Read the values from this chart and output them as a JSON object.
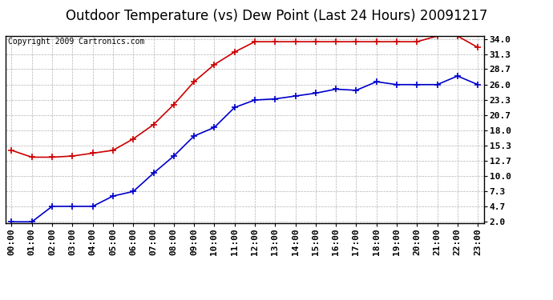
{
  "title": "Outdoor Temperature (vs) Dew Point (Last 24 Hours) 20091217",
  "copyright": "Copyright 2009 Cartronics.com",
  "hours": [
    "00:00",
    "01:00",
    "02:00",
    "03:00",
    "04:00",
    "05:00",
    "06:00",
    "07:00",
    "08:00",
    "09:00",
    "10:00",
    "11:00",
    "12:00",
    "13:00",
    "14:00",
    "15:00",
    "16:00",
    "17:00",
    "18:00",
    "19:00",
    "20:00",
    "21:00",
    "22:00",
    "23:00"
  ],
  "temp": [
    14.5,
    13.3,
    13.3,
    13.5,
    14.0,
    14.5,
    16.5,
    19.0,
    22.5,
    26.5,
    29.5,
    31.7,
    33.5,
    33.5,
    33.5,
    33.5,
    33.5,
    33.5,
    33.5,
    33.5,
    33.5,
    34.5,
    34.5,
    32.5
  ],
  "dewpoint": [
    2.0,
    2.0,
    4.7,
    4.7,
    4.7,
    6.5,
    7.3,
    10.5,
    13.5,
    17.0,
    18.5,
    22.0,
    23.3,
    23.5,
    24.0,
    24.5,
    25.2,
    25.0,
    26.5,
    26.0,
    26.0,
    26.0,
    27.5,
    26.0
  ],
  "temp_color": "#cc0000",
  "dewpoint_color": "#0000cc",
  "bg_color": "#ffffff",
  "plot_bg_color": "#ffffff",
  "grid_color": "#aaaaaa",
  "yticks": [
    2.0,
    4.7,
    7.3,
    10.0,
    12.7,
    15.3,
    18.0,
    20.7,
    23.3,
    26.0,
    28.7,
    31.3,
    34.0
  ],
  "ymin": 2.0,
  "ymax": 34.0,
  "title_fontsize": 12,
  "copyright_fontsize": 7,
  "tick_fontsize": 8,
  "marker_size": 3,
  "line_width": 1.2
}
